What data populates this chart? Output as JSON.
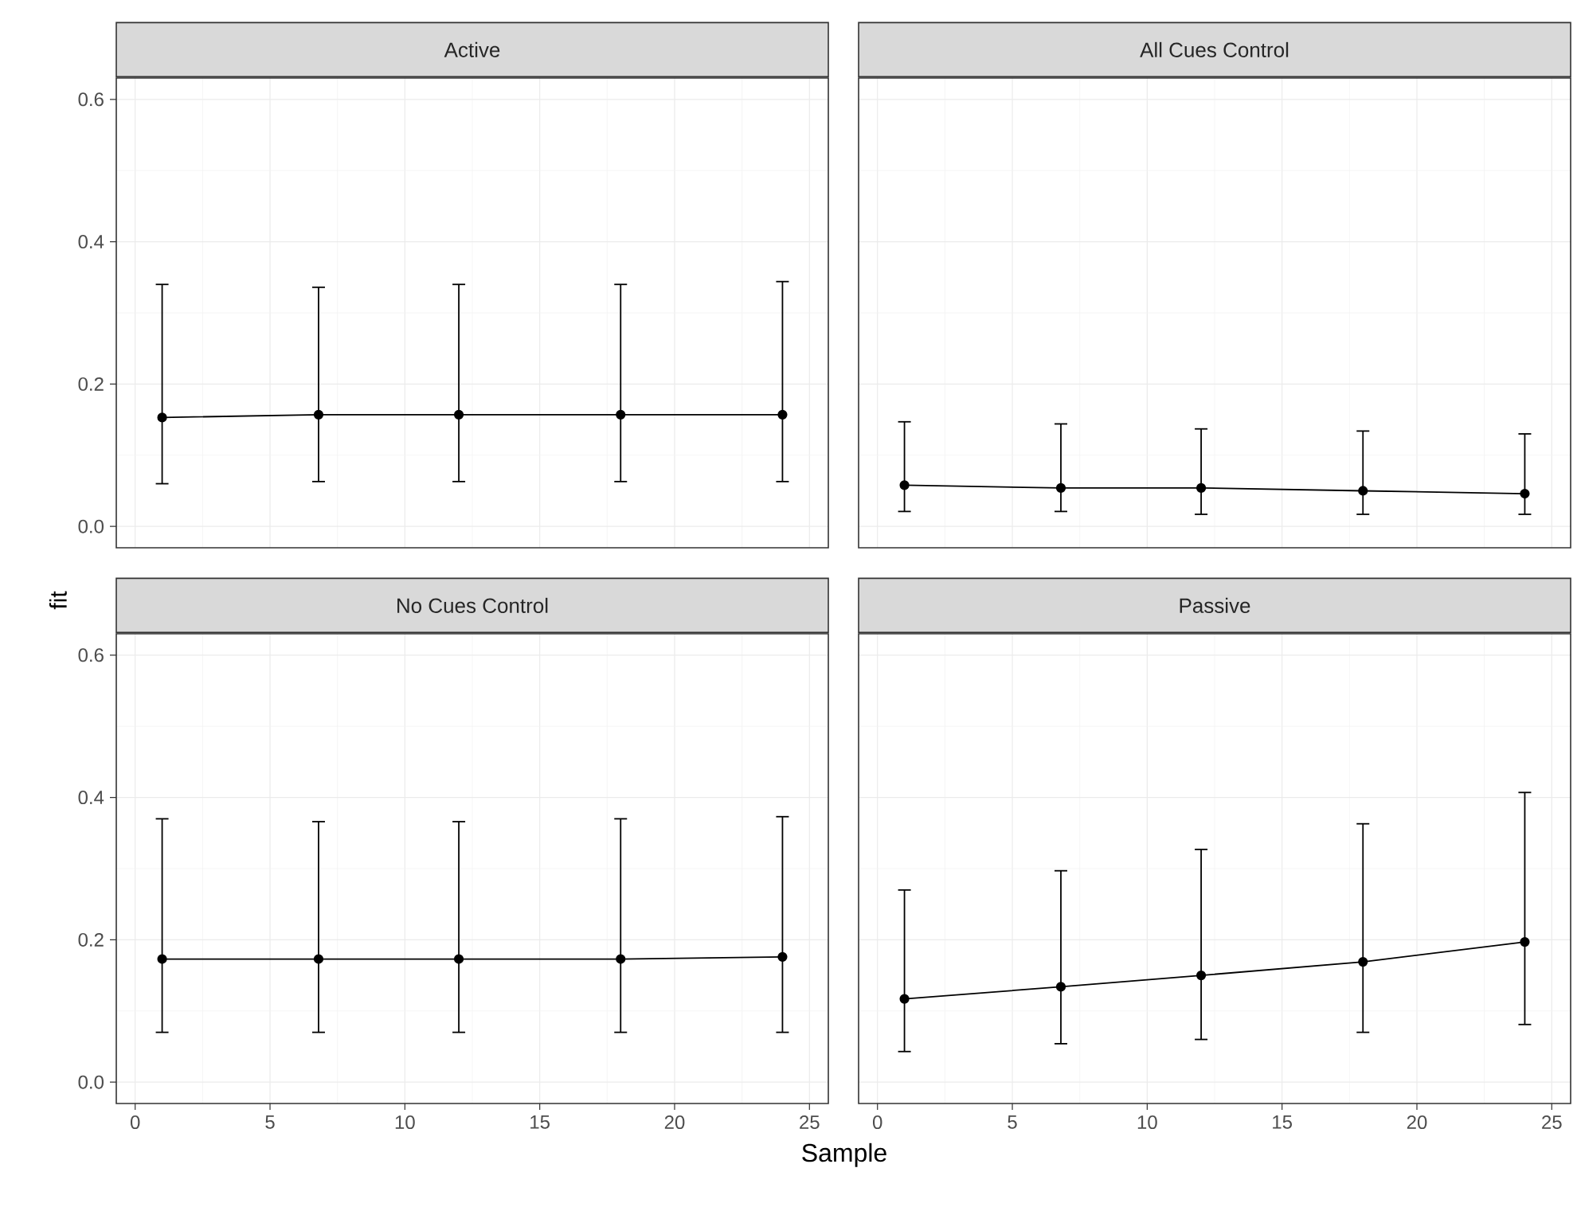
{
  "chart_data": [
    {
      "type": "line",
      "title": "Active",
      "ylabel": "fit",
      "x": [
        1,
        6.8,
        12,
        18,
        24
      ],
      "values": [
        0.153,
        0.157,
        0.157,
        0.157,
        0.157
      ],
      "errors": [
        [
          0.06,
          0.34
        ],
        [
          0.063,
          0.336
        ],
        [
          0.063,
          0.34
        ],
        [
          0.063,
          0.34
        ],
        [
          0.063,
          0.344
        ]
      ],
      "color": "#000000",
      "marker": "circle",
      "xlim": [
        -0.7,
        25.7
      ],
      "ylim": [
        -0.03,
        0.63
      ],
      "xticks": [
        0,
        5,
        10,
        15,
        20,
        25
      ],
      "yticks": [
        {
          "value": 0,
          "label": "0.0"
        },
        0.2,
        0.4,
        0.6
      ],
      "grid": true,
      "tick_labels": "y"
    },
    {
      "type": "line",
      "title": "All Cues Control",
      "x": [
        1,
        6.8,
        12,
        18,
        24
      ],
      "values": [
        0.058,
        0.054,
        0.054,
        0.05,
        0.046
      ],
      "errors": [
        [
          0.021,
          0.147
        ],
        [
          0.021,
          0.144
        ],
        [
          0.017,
          0.137
        ],
        [
          0.017,
          0.134
        ],
        [
          0.017,
          0.13
        ]
      ],
      "color": "#000000",
      "marker": "circle",
      "xlim": [
        -0.7,
        25.7
      ],
      "ylim": [
        -0.03,
        0.63
      ],
      "xticks": [
        0,
        5,
        10,
        15,
        20,
        25
      ],
      "yticks": [
        0,
        0.2,
        0.4,
        0.6
      ],
      "grid": true,
      "tick_labels": false
    },
    {
      "type": "line",
      "title": "No Cues Control",
      "xlabel": "Sample",
      "x": [
        1,
        6.8,
        12,
        18,
        24
      ],
      "values": [
        0.173,
        0.173,
        0.173,
        0.173,
        0.176
      ],
      "errors": [
        [
          0.07,
          0.37
        ],
        [
          0.07,
          0.366
        ],
        [
          0.07,
          0.366
        ],
        [
          0.07,
          0.37
        ],
        [
          0.07,
          0.373
        ]
      ],
      "color": "#000000",
      "marker": "circle",
      "xlim": [
        -0.7,
        25.7
      ],
      "ylim": [
        -0.03,
        0.63
      ],
      "xticks": [
        0,
        5,
        10,
        15,
        20,
        25
      ],
      "yticks": [
        {
          "value": 0,
          "label": "0.0"
        },
        0.2,
        0.4,
        0.6
      ],
      "grid": true
    },
    {
      "type": "line",
      "title": "Passive",
      "x": [
        1,
        6.8,
        12,
        18,
        24
      ],
      "values": [
        0.117,
        0.134,
        0.15,
        0.169,
        0.197
      ],
      "errors": [
        [
          0.043,
          0.27
        ],
        [
          0.054,
          0.297
        ],
        [
          0.06,
          0.327
        ],
        [
          0.07,
          0.363
        ],
        [
          0.081,
          0.407
        ]
      ],
      "color": "#000000",
      "marker": "circle",
      "xlim": [
        -0.7,
        25.7
      ],
      "ylim": [
        -0.03,
        0.63
      ],
      "xticks": [
        0,
        5,
        10,
        15,
        20,
        25
      ],
      "yticks": [
        0,
        0.2,
        0.4,
        0.6
      ],
      "grid": true,
      "tick_labels": "x"
    }
  ]
}
